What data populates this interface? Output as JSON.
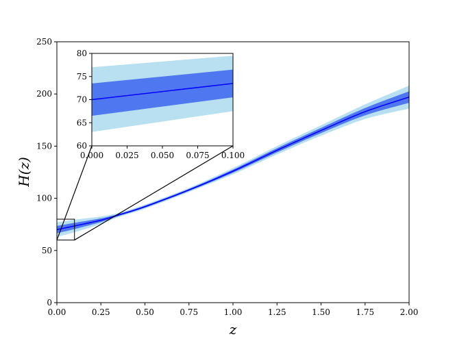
{
  "chart_data": [
    {
      "type": "area",
      "role": "main",
      "xlabel": "z",
      "ylabel": "H(z)",
      "xlim": [
        0,
        2
      ],
      "ylim": [
        0,
        250
      ],
      "xticks": [
        0,
        0.25,
        0.5,
        0.75,
        1.0,
        1.25,
        1.5,
        1.75,
        2.0
      ],
      "xtick_labels": [
        "0.00",
        "0.25",
        "0.50",
        "0.75",
        "1.00",
        "1.25",
        "1.50",
        "1.75",
        "2.00"
      ],
      "yticks": [
        0,
        50,
        100,
        150,
        200,
        250
      ],
      "ytick_labels": [
        "0",
        "50",
        "100",
        "150",
        "200",
        "250"
      ],
      "grid": false,
      "x": [
        0,
        0.1,
        0.25,
        0.35,
        0.5,
        0.75,
        1.0,
        1.25,
        1.5,
        1.75,
        2.0
      ],
      "mean": [
        70,
        73.5,
        79,
        84,
        92,
        108,
        126,
        146,
        165,
        183,
        197
      ],
      "band_1sigma": {
        "lower": [
          66.5,
          70.5,
          77.2,
          83,
          91,
          107,
          124.5,
          144,
          162.5,
          179.5,
          191.5
        ],
        "upper": [
          73.5,
          76.5,
          80.8,
          85,
          93,
          109,
          127.5,
          148,
          167.5,
          186.5,
          202.5
        ]
      },
      "band_2sigma": {
        "lower": [
          63,
          67.5,
          75.4,
          82,
          90,
          106,
          123,
          142,
          160,
          176,
          186
        ],
        "upper": [
          77,
          79.5,
          82.6,
          86,
          94,
          110,
          129,
          150,
          170,
          190,
          208
        ]
      },
      "zoom_box": {
        "x": [
          0,
          0.1
        ],
        "y": [
          60,
          80
        ]
      },
      "colors": {
        "mean": "#0000ff",
        "band_1sigma": "#4f78f0",
        "band_2sigma": "#b8e0f0"
      }
    },
    {
      "type": "area",
      "role": "inset",
      "xlim": [
        0,
        0.1
      ],
      "ylim": [
        60,
        80
      ],
      "xticks": [
        0,
        0.025,
        0.05,
        0.075,
        0.1
      ],
      "xtick_labels": [
        "0.000",
        "0.025",
        "0.050",
        "0.075",
        "0.100"
      ],
      "yticks": [
        60,
        65,
        70,
        75,
        80
      ],
      "ytick_labels": [
        "60",
        "65",
        "70",
        "75",
        "80"
      ],
      "x": [
        0,
        0.1
      ],
      "mean": [
        70,
        73.5
      ],
      "band_1sigma": {
        "lower": [
          66.5,
          70.5
        ],
        "upper": [
          73.5,
          76.5
        ]
      },
      "band_2sigma": {
        "lower": [
          63,
          67.5
        ],
        "upper": [
          77,
          79.5
        ]
      }
    }
  ]
}
